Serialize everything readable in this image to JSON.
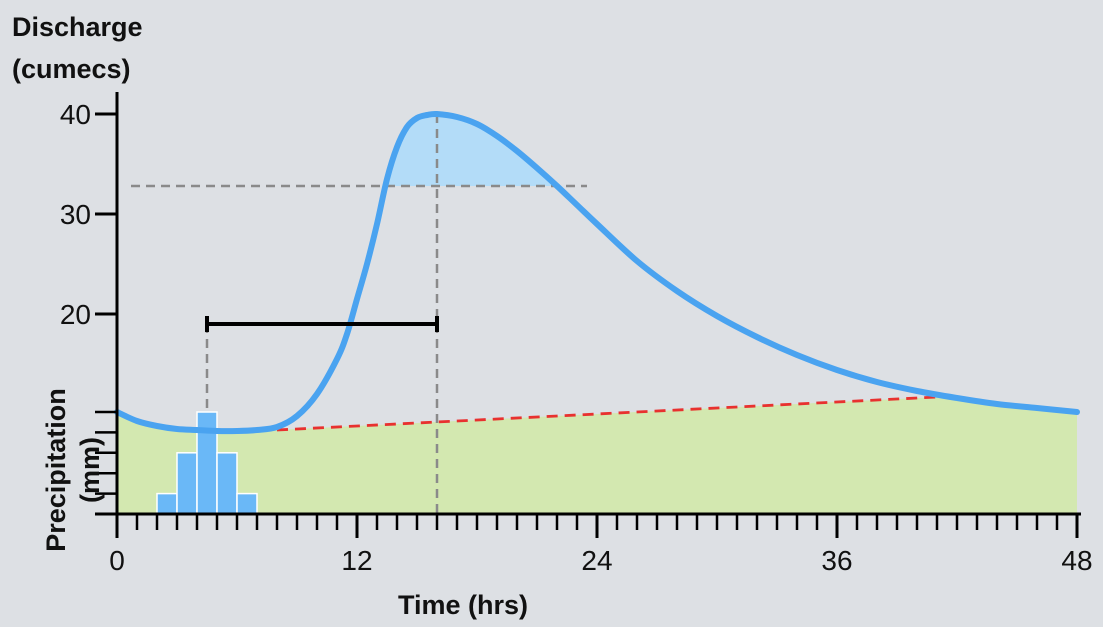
{
  "chart_data": {
    "type": "line",
    "title": "",
    "ylabel_lines": [
      "Discharge",
      "(cumecs)"
    ],
    "secondary_ylabel_lines": [
      "Precipitation",
      "(mm)"
    ],
    "xlabel": "Time (hrs)",
    "xlim": [
      0,
      48
    ],
    "ylim": [
      0,
      40
    ],
    "x_ticks": [
      0,
      12,
      24,
      36,
      48
    ],
    "x_tick_labels": [
      "0",
      "12",
      "24",
      "36",
      "48"
    ],
    "x_minor_step": 1,
    "y_ticks": [
      20,
      30,
      40
    ],
    "y_tick_labels": [
      "20",
      "30",
      "40"
    ],
    "grid": false,
    "colors": {
      "hydrograph": "#4aa3f0",
      "quickflow_fill": "#b3dcf8",
      "baseflow_fill": "#d3e8b0",
      "baseflow_separation": "#e8312f",
      "rain_bars": "#6ab8f7",
      "guides": "#8a8a8a",
      "lag_bar": "#000000"
    },
    "series": [
      {
        "x": [
          0,
          1,
          2,
          3,
          4,
          5,
          6,
          7,
          8,
          9,
          10,
          11,
          11.5,
          12,
          12.5,
          13,
          13.5,
          14,
          14.5,
          15,
          15.5,
          16,
          17,
          18,
          19,
          20,
          21,
          22,
          23,
          24,
          26,
          28,
          30,
          32,
          34,
          36,
          38,
          40,
          42,
          44,
          46,
          48
        ],
        "values": [
          10.2,
          9.3,
          8.8,
          8.5,
          8.4,
          8.3,
          8.3,
          8.4,
          8.7,
          9.8,
          12.0,
          15.5,
          18.0,
          21.5,
          25.0,
          29.0,
          33.5,
          36.7,
          38.7,
          39.6,
          39.9,
          40.0,
          39.7,
          39.0,
          37.8,
          36.3,
          34.6,
          32.8,
          30.9,
          29.0,
          25.3,
          22.3,
          19.8,
          17.7,
          15.9,
          14.4,
          13.2,
          12.3,
          11.6,
          11.0,
          10.6,
          10.2
        ]
      },
      {
        "x": [
          8,
          42
        ],
        "values": [
          8.4,
          11.8
        ]
      }
    ],
    "precipitation_bars": {
      "x_start": [
        2,
        3,
        4,
        5,
        6,
        7
      ],
      "values": [
        2,
        6,
        10,
        6,
        2,
        0
      ]
    },
    "peak_time": 16,
    "peak_discharge": 40,
    "threshold_discharge": 32.8,
    "rain_peak_time": 4.5,
    "lag_bar_x": [
      4.5,
      16
    ],
    "lag_bar_y": 19
  }
}
